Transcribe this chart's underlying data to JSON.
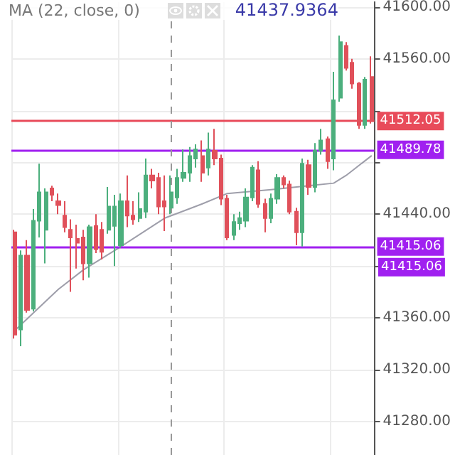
{
  "chart_data": {
    "type": "candlestick",
    "title": "MA (22, close, 0)",
    "annotations": [
      "41437.9364",
      "41415.06"
    ],
    "categories": [
      null,
      null,
      null,
      null,
      null,
      null,
      null,
      null,
      null,
      null,
      null,
      null,
      null,
      null,
      null,
      null,
      null,
      null,
      null,
      null,
      null,
      null,
      null,
      null,
      null,
      null,
      null,
      null,
      null,
      null,
      null,
      null,
      null,
      null,
      null,
      null,
      null,
      null,
      null,
      null,
      null,
      null,
      null,
      null,
      null,
      null,
      null,
      null,
      null,
      null,
      null,
      null,
      null,
      null,
      null,
      null,
      null,
      null
    ],
    "ohlc": [
      [
        41426,
        41428,
        41344,
        41347
      ],
      [
        41351,
        41412,
        41338,
        41408
      ],
      [
        41408,
        41420,
        41364,
        41366
      ],
      [
        41367,
        41444,
        41365,
        41435
      ],
      [
        41435,
        41479,
        41422,
        41457
      ],
      [
        41428,
        41460,
        41402,
        41457
      ],
      [
        41460,
        41462,
        41450,
        41455
      ],
      [
        41450,
        41456,
        41440,
        41447
      ],
      [
        41439,
        41450,
        41426,
        41430
      ],
      [
        41428,
        41436,
        41380,
        41422
      ],
      [
        41421,
        41432,
        41398,
        41418
      ],
      [
        41422,
        41428,
        41389,
        41402
      ],
      [
        41402,
        41432,
        41391,
        41430
      ],
      [
        41431,
        41440,
        41410,
        41413
      ],
      [
        41428,
        41434,
        41405,
        41411
      ],
      [
        41428,
        41461,
        41425,
        41446
      ],
      [
        41431,
        41455,
        41400,
        41446
      ],
      [
        41416,
        41456,
        41414,
        41450
      ],
      [
        41450,
        41470,
        41430,
        41439
      ],
      [
        41439,
        41450,
        41432,
        41436
      ],
      [
        41437,
        41457,
        41434,
        41444
      ],
      [
        41442,
        41483,
        41437,
        41470
      ],
      [
        41470,
        41475,
        41460,
        41466
      ],
      [
        41468,
        41472,
        41440,
        41446
      ],
      [
        41450,
        41470,
        41427,
        41446
      ],
      [
        41445,
        41470,
        41440,
        41457
      ],
      [
        41453,
        41475,
        41448,
        41468
      ],
      [
        41468,
        41490,
        41465,
        41472
      ],
      [
        41472,
        41492,
        41465,
        41485
      ],
      [
        41483,
        41494,
        41476,
        41490
      ],
      [
        41485,
        41497,
        41465,
        41472
      ],
      [
        41476,
        41503,
        41470,
        41490
      ],
      [
        41489,
        41506,
        41478,
        41483
      ],
      [
        41483,
        41486,
        41447,
        41452
      ],
      [
        41452,
        41455,
        41420,
        41422
      ],
      [
        41424,
        41440,
        41420,
        41434
      ],
      [
        41433,
        41442,
        41428,
        41437
      ],
      [
        41435,
        41460,
        41430,
        41453
      ],
      [
        41453,
        41478,
        41450,
        41476
      ],
      [
        41474,
        41481,
        41445,
        41448
      ],
      [
        41448,
        41452,
        41426,
        41437
      ],
      [
        41437,
        41456,
        41433,
        41452
      ],
      [
        41452,
        41471,
        41448,
        41468
      ],
      [
        41468,
        41470,
        41460,
        41463
      ],
      [
        41463,
        41466,
        41440,
        41442
      ],
      [
        41442,
        41445,
        41416,
        41426
      ],
      [
        41426,
        41483,
        41415,
        41479
      ],
      [
        41478,
        41482,
        41455,
        41461
      ],
      [
        41461,
        41495,
        41457,
        41489
      ],
      [
        41489,
        41506,
        41486,
        41497
      ],
      [
        41498,
        41500,
        41475,
        41481
      ],
      [
        41483,
        41550,
        41474,
        41528
      ],
      [
        41530,
        41578,
        41527,
        41573
      ],
      [
        41570,
        41573,
        41551,
        41553
      ],
      [
        41557,
        41560,
        41537,
        41541
      ],
      [
        41541,
        41542,
        41506,
        41509
      ],
      [
        41509,
        41546,
        41506,
        41544
      ],
      [
        41546,
        41562,
        41510,
        41512
      ]
    ],
    "colors": [
      "#e0505a",
      "#4caf7d",
      "#e0505a",
      "#4caf7d",
      "#4caf7d",
      "#4caf7d",
      "#e0505a",
      "#e0505a",
      "#e0505a",
      "#e0505a",
      "#e0505a",
      "#e0505a",
      "#4caf7d",
      "#e0505a",
      "#e0505a",
      "#4caf7d",
      "#4caf7d",
      "#4caf7d",
      "#e0505a",
      "#e0505a",
      "#4caf7d",
      "#4caf7d",
      "#e0505a",
      "#e0505a",
      "#e0505a",
      "#4caf7d",
      "#4caf7d",
      "#4caf7d",
      "#4caf7d",
      "#4caf7d",
      "#e0505a",
      "#4caf7d",
      "#e0505a",
      "#e0505a",
      "#e0505a",
      "#4caf7d",
      "#4caf7d",
      "#4caf7d",
      "#4caf7d",
      "#e0505a",
      "#e0505a",
      "#4caf7d",
      "#4caf7d",
      "#e0505a",
      "#e0505a",
      "#e0505a",
      "#4caf7d",
      "#e0505a",
      "#4caf7d",
      "#4caf7d",
      "#e0505a",
      "#4caf7d",
      "#4caf7d",
      "#e0505a",
      "#e0505a",
      "#e0505a",
      "#4caf7d",
      "#e0505a"
    ],
    "series": [
      {
        "type": "line",
        "color": "#9e9eaa",
        "values": [
          41350,
          null,
          null,
          null,
          null,
          null,
          null,
          41382,
          null,
          null,
          null,
          41397,
          null,
          null,
          null,
          null,
          null,
          41415,
          null,
          null,
          null,
          null,
          null,
          null,
          41437,
          null,
          null,
          null,
          null,
          null,
          41448,
          null,
          null,
          null,
          41456,
          null,
          null,
          null,
          null,
          null,
          null,
          41459,
          null,
          null,
          null,
          null,
          null,
          41462,
          null,
          null,
          null,
          41464,
          null,
          41470,
          null,
          null,
          null,
          41485
        ]
      }
    ],
    "ylim": [
      41254,
      41604
    ],
    "yticks": [
      {
        "value": 41280,
        "label": "41280.00"
      },
      {
        "value": 41320,
        "label": "41320.00"
      },
      {
        "value": 41360,
        "label": "41360.00"
      },
      {
        "value": 41400,
        "label": null
      },
      {
        "value": 41440,
        "label": "41440.00"
      },
      {
        "value": 41480,
        "label": null
      },
      {
        "value": 41520,
        "label": null
      },
      {
        "value": 41560,
        "label": "41560.00"
      },
      {
        "value": 41600,
        "label": "41600.00"
      }
    ],
    "ref_lines": [
      {
        "axis": "y",
        "value": 41512.05,
        "label": "41512.05",
        "color": "#e84b5a"
      },
      {
        "axis": "y",
        "value": 41489.78,
        "label": "41489.78",
        "color": "#a020f0"
      },
      {
        "axis": "y",
        "value": 41415.06,
        "label": "41415.06",
        "color": "#a020f0"
      }
    ],
    "grid": true
  }
}
